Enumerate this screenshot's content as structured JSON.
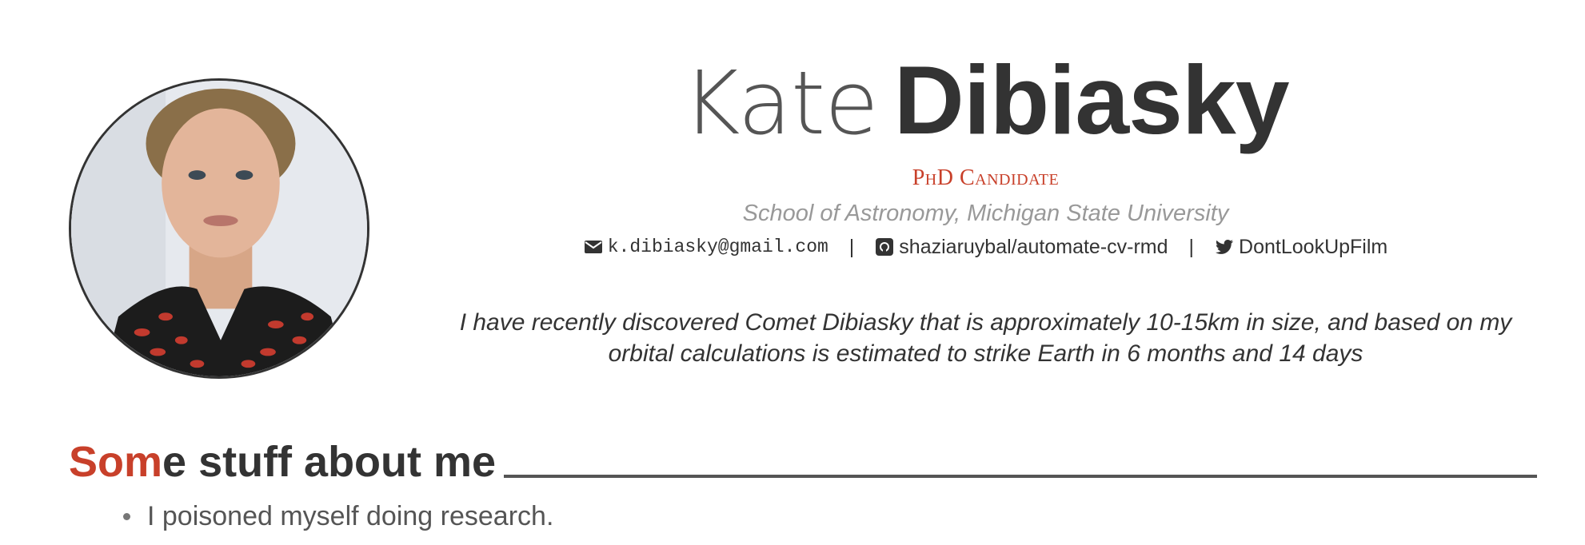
{
  "header": {
    "first_name": "Kate",
    "last_name": "Dibiasky",
    "position": "PhD Candidate",
    "address": "School of Astronomy, Michigan State University",
    "contacts": {
      "email": "k.dibiasky@gmail.com",
      "github": "shaziaruybal/automate-cv-rmd",
      "twitter": "DontLookUpFilm",
      "separator": "|"
    },
    "quote": "I have recently discovered Comet Dibiasky that is approximately 10-15km in size, and based on my orbital calculations is estimated to strike Earth in 6 months and 14 days"
  },
  "section": {
    "title_accent": "Som",
    "title_rest": "e stuff about me",
    "items": [
      "I poisoned myself doing research."
    ]
  },
  "colors": {
    "accent": "#c8402a",
    "text": "#333333",
    "muted": "#999999"
  },
  "icons": [
    "envelope-icon",
    "github-icon",
    "twitter-icon"
  ]
}
